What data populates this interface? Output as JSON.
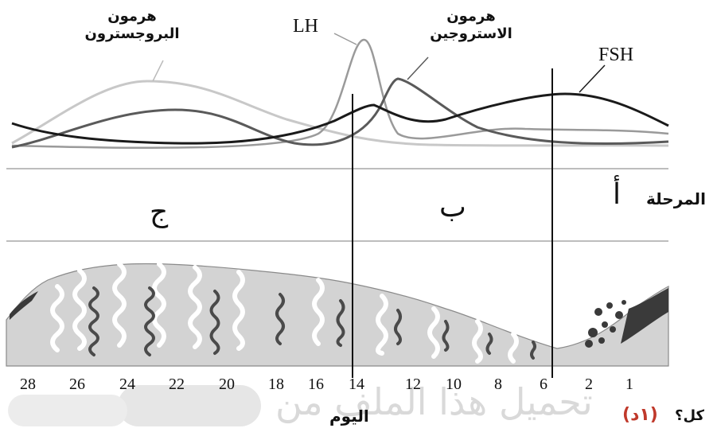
{
  "hormones": {
    "progesterone": {
      "line1": "هرمون",
      "line2": "البروجسترون"
    },
    "lh": "LH",
    "estrogen": {
      "line1": "هرمون",
      "line2": "الاستروجين"
    },
    "fsh": "FSH"
  },
  "phases": {
    "label": "المرحلة",
    "a": "أ",
    "b": "ب",
    "c": "ج"
  },
  "axis": {
    "ticks": [
      "28",
      "26",
      "24",
      "22",
      "20",
      "18",
      "16",
      "14",
      "12",
      "10",
      "8",
      "6",
      "2",
      "1"
    ],
    "label": "اليوم"
  },
  "question": {
    "text": "كل؟",
    "mark": "(١د)"
  },
  "watermark": {
    "text": "تحميل هذا الملف من"
  },
  "colors": {
    "fsh": "#1a1a1a",
    "lh": "#9a9a9a",
    "estrogen": "#5a5a5a",
    "progesterone": "#c8c8c8",
    "endometrium": "#d3d3d3"
  }
}
